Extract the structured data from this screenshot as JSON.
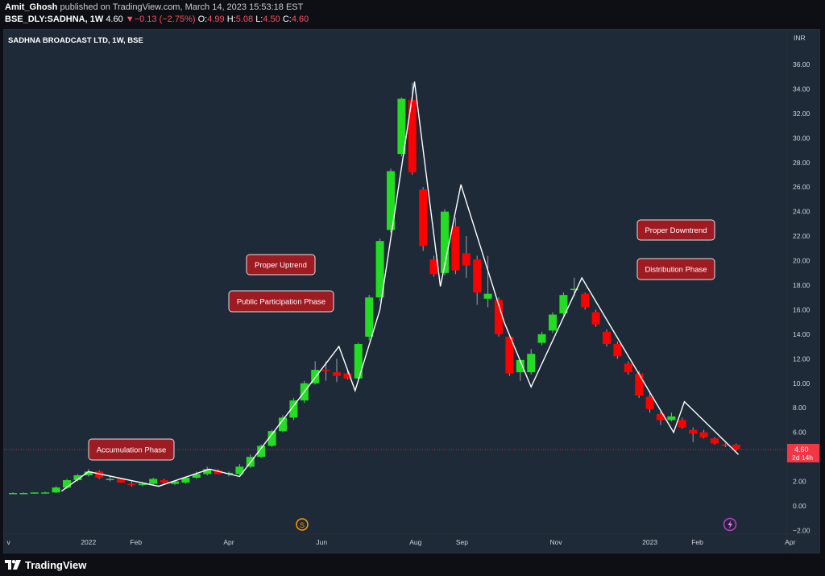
{
  "header": {
    "author": "Amit_Ghosh",
    "published_text": "published on TradingView.com, March 14, 2023 15:53:18 EST",
    "symbol": "BSE_DLY:SADHNA, 1W",
    "price": "4.60",
    "change_arrow": "▼",
    "change": "−0.13 (−2.75%)",
    "o_label": "O:",
    "o_val": "4.99",
    "h_label": "H:",
    "h_val": "5.08",
    "l_label": "L:",
    "l_val": "4.50",
    "c_label": "C:",
    "c_val": "4.60"
  },
  "chart_title": "SADHNA BROADCAST LTD, 1W, BSE",
  "currency_label": "INR",
  "price_tag": {
    "price": "4.60",
    "countdown": "2d 14h"
  },
  "annotations": {
    "accumulation": "Accumulation Phase",
    "uptrend": "Proper Uptrend",
    "public": "Public Participation Phase",
    "downtrend": "Proper Downtrend",
    "distribution": "Distribution Phase"
  },
  "markers": {
    "s_icon_label": "S",
    "bolt_icon": "bolt-icon"
  },
  "footer": {
    "brand": "TradingView",
    "logo_icon": "tradingview-logo-icon"
  },
  "colors": {
    "up": "#22dd22",
    "down": "#ff0000",
    "background": "#1e2a37",
    "label_bg": "#9e1b22",
    "price_tag": "#f23645",
    "pattern_line": "#ffffff"
  },
  "chart_data": {
    "type": "candlestick",
    "interval": "1W",
    "y_unit": "INR",
    "y_ticks": [
      "36.00",
      "34.00",
      "32.00",
      "30.00",
      "28.00",
      "26.00",
      "24.00",
      "22.00",
      "20.00",
      "18.00",
      "16.00",
      "14.00",
      "12.00",
      "10.00",
      "8.00",
      "6.00",
      "4.00",
      "2.00",
      "0.00",
      "−2.00"
    ],
    "y_range": [
      -2.3,
      38
    ],
    "x_labels": [
      {
        "text": "v",
        "week": -0.4
      },
      {
        "text": "2022",
        "week": 7.0
      },
      {
        "text": "Feb",
        "week": 11.4
      },
      {
        "text": "Apr",
        "week": 20.0
      },
      {
        "text": "Jun",
        "week": 28.6
      },
      {
        "text": "Aug",
        "week": 37.3
      },
      {
        "text": "Sep",
        "week": 41.6
      },
      {
        "text": "Nov",
        "week": 50.3
      },
      {
        "text": "2023",
        "week": 59.0
      },
      {
        "text": "Feb",
        "week": 63.4
      },
      {
        "text": "Apr",
        "week": 72.0
      }
    ],
    "candles": [
      {
        "o": 1.0,
        "h": 1.1,
        "l": 0.95,
        "c": 1.05
      },
      {
        "o": 1.05,
        "h": 1.1,
        "l": 1.0,
        "c": 1.05
      },
      {
        "o": 1.05,
        "h": 1.1,
        "l": 1.0,
        "c": 1.1
      },
      {
        "o": 1.1,
        "h": 1.15,
        "l": 1.05,
        "c": 1.1
      },
      {
        "o": 1.1,
        "h": 1.6,
        "l": 1.05,
        "c": 1.5
      },
      {
        "o": 1.5,
        "h": 2.2,
        "l": 1.4,
        "c": 2.1
      },
      {
        "o": 2.1,
        "h": 2.6,
        "l": 2.0,
        "c": 2.5
      },
      {
        "o": 2.5,
        "h": 3.0,
        "l": 2.4,
        "c": 2.8
      },
      {
        "o": 2.8,
        "h": 2.9,
        "l": 2.2,
        "c": 2.3
      },
      {
        "o": 2.2,
        "h": 2.4,
        "l": 2.0,
        "c": 2.2
      },
      {
        "o": 2.2,
        "h": 2.3,
        "l": 1.9,
        "c": 1.9
      },
      {
        "o": 1.8,
        "h": 2.0,
        "l": 1.6,
        "c": 1.7
      },
      {
        "o": 1.7,
        "h": 1.9,
        "l": 1.6,
        "c": 1.8
      },
      {
        "o": 1.8,
        "h": 2.3,
        "l": 1.7,
        "c": 2.2
      },
      {
        "o": 2.1,
        "h": 2.2,
        "l": 1.8,
        "c": 1.9
      },
      {
        "o": 1.8,
        "h": 2.1,
        "l": 1.7,
        "c": 2.0
      },
      {
        "o": 1.9,
        "h": 2.4,
        "l": 1.8,
        "c": 2.3
      },
      {
        "o": 2.3,
        "h": 2.8,
        "l": 2.2,
        "c": 2.6
      },
      {
        "o": 2.6,
        "h": 3.2,
        "l": 2.5,
        "c": 3.0
      },
      {
        "o": 2.9,
        "h": 3.0,
        "l": 2.6,
        "c": 2.6
      },
      {
        "o": 2.6,
        "h": 2.8,
        "l": 2.4,
        "c": 2.7
      },
      {
        "o": 2.6,
        "h": 3.4,
        "l": 2.5,
        "c": 3.2
      },
      {
        "o": 3.2,
        "h": 4.2,
        "l": 3.1,
        "c": 4.0
      },
      {
        "o": 4.0,
        "h": 5.0,
        "l": 3.9,
        "c": 4.9
      },
      {
        "o": 4.9,
        "h": 6.2,
        "l": 4.8,
        "c": 6.1
      },
      {
        "o": 6.1,
        "h": 7.4,
        "l": 6.0,
        "c": 7.2
      },
      {
        "o": 7.2,
        "h": 8.8,
        "l": 7.0,
        "c": 8.6
      },
      {
        "o": 8.6,
        "h": 10.2,
        "l": 8.4,
        "c": 10.0
      },
      {
        "o": 10.0,
        "h": 11.8,
        "l": 9.9,
        "c": 11.1
      },
      {
        "o": 11.1,
        "h": 11.8,
        "l": 10.2,
        "c": 11.0
      },
      {
        "o": 10.9,
        "h": 12.0,
        "l": 10.1,
        "c": 10.6
      },
      {
        "o": 10.8,
        "h": 11.1,
        "l": 10.3,
        "c": 10.4
      },
      {
        "o": 10.4,
        "h": 13.3,
        "l": 10.3,
        "c": 13.2
      },
      {
        "o": 13.8,
        "h": 17.2,
        "l": 13.5,
        "c": 17.0
      },
      {
        "o": 17.0,
        "h": 21.8,
        "l": 16.7,
        "c": 21.6
      },
      {
        "o": 22.5,
        "h": 27.5,
        "l": 22.3,
        "c": 27.3
      },
      {
        "o": 28.7,
        "h": 33.3,
        "l": 28.5,
        "c": 33.2
      },
      {
        "o": 33.1,
        "h": 34.5,
        "l": 27.0,
        "c": 27.2
      },
      {
        "o": 25.8,
        "h": 26.0,
        "l": 20.8,
        "c": 21.2
      },
      {
        "o": 20.1,
        "h": 20.4,
        "l": 18.7,
        "c": 18.9
      },
      {
        "o": 19.0,
        "h": 24.2,
        "l": 18.8,
        "c": 24.0
      },
      {
        "o": 22.8,
        "h": 23.5,
        "l": 18.9,
        "c": 19.2
      },
      {
        "o": 20.6,
        "h": 22.0,
        "l": 18.6,
        "c": 19.6
      },
      {
        "o": 20.1,
        "h": 20.4,
        "l": 16.4,
        "c": 17.4
      },
      {
        "o": 16.9,
        "h": 20.4,
        "l": 16.2,
        "c": 17.3
      },
      {
        "o": 16.8,
        "h": 17.0,
        "l": 13.8,
        "c": 14.0
      },
      {
        "o": 13.8,
        "h": 14.0,
        "l": 10.6,
        "c": 10.8
      },
      {
        "o": 10.9,
        "h": 11.6,
        "l": 10.2,
        "c": 11.9
      },
      {
        "o": 10.9,
        "h": 12.8,
        "l": 10.7,
        "c": 12.4
      },
      {
        "o": 13.3,
        "h": 14.2,
        "l": 13.1,
        "c": 14.0
      },
      {
        "o": 14.3,
        "h": 15.8,
        "l": 14.1,
        "c": 15.6
      },
      {
        "o": 15.7,
        "h": 17.4,
        "l": 15.5,
        "c": 17.2
      },
      {
        "o": 17.6,
        "h": 18.6,
        "l": 17.1,
        "c": 17.7
      },
      {
        "o": 17.3,
        "h": 17.4,
        "l": 16.0,
        "c": 16.2
      },
      {
        "o": 15.8,
        "h": 16.0,
        "l": 14.6,
        "c": 14.8
      },
      {
        "o": 14.2,
        "h": 14.4,
        "l": 13.0,
        "c": 13.2
      },
      {
        "o": 13.2,
        "h": 13.4,
        "l": 12.0,
        "c": 12.2
      },
      {
        "o": 11.6,
        "h": 11.8,
        "l": 10.7,
        "c": 10.9
      },
      {
        "o": 10.8,
        "h": 11.0,
        "l": 8.8,
        "c": 9.0
      },
      {
        "o": 8.9,
        "h": 9.4,
        "l": 7.6,
        "c": 7.9
      },
      {
        "o": 7.5,
        "h": 7.7,
        "l": 6.6,
        "c": 7.0
      },
      {
        "o": 7.0,
        "h": 7.6,
        "l": 6.9,
        "c": 7.3
      },
      {
        "o": 7.0,
        "h": 7.2,
        "l": 6.3,
        "c": 6.4
      },
      {
        "o": 6.2,
        "h": 6.4,
        "l": 5.2,
        "c": 5.9
      },
      {
        "o": 6.0,
        "h": 6.2,
        "l": 5.5,
        "c": 5.6
      },
      {
        "o": 5.5,
        "h": 5.6,
        "l": 5.0,
        "c": 5.1
      },
      {
        "o": 5.0,
        "h": 5.1,
        "l": 4.8,
        "c": 4.9
      },
      {
        "o": 4.99,
        "h": 5.08,
        "l": 4.5,
        "c": 4.6
      }
    ],
    "pattern_line": [
      {
        "week": 4.5,
        "price": 1.2
      },
      {
        "week": 7.0,
        "price": 2.8
      },
      {
        "week": 13.5,
        "price": 1.6
      },
      {
        "week": 18.2,
        "price": 3.0
      },
      {
        "week": 21.0,
        "price": 2.4
      },
      {
        "week": 30.2,
        "price": 13.0
      },
      {
        "week": 31.7,
        "price": 9.4
      },
      {
        "week": 34.0,
        "price": 16.0
      },
      {
        "week": 37.2,
        "price": 34.6
      },
      {
        "week": 39.6,
        "price": 17.9
      },
      {
        "week": 41.5,
        "price": 26.2
      },
      {
        "week": 45.5,
        "price": 15.0
      },
      {
        "week": 48.0,
        "price": 9.7
      },
      {
        "week": 52.7,
        "price": 18.6
      },
      {
        "week": 61.2,
        "price": 6.0
      },
      {
        "week": 62.2,
        "price": 8.5
      },
      {
        "week": 67.2,
        "price": 4.2
      }
    ],
    "last_price": 4.6
  }
}
